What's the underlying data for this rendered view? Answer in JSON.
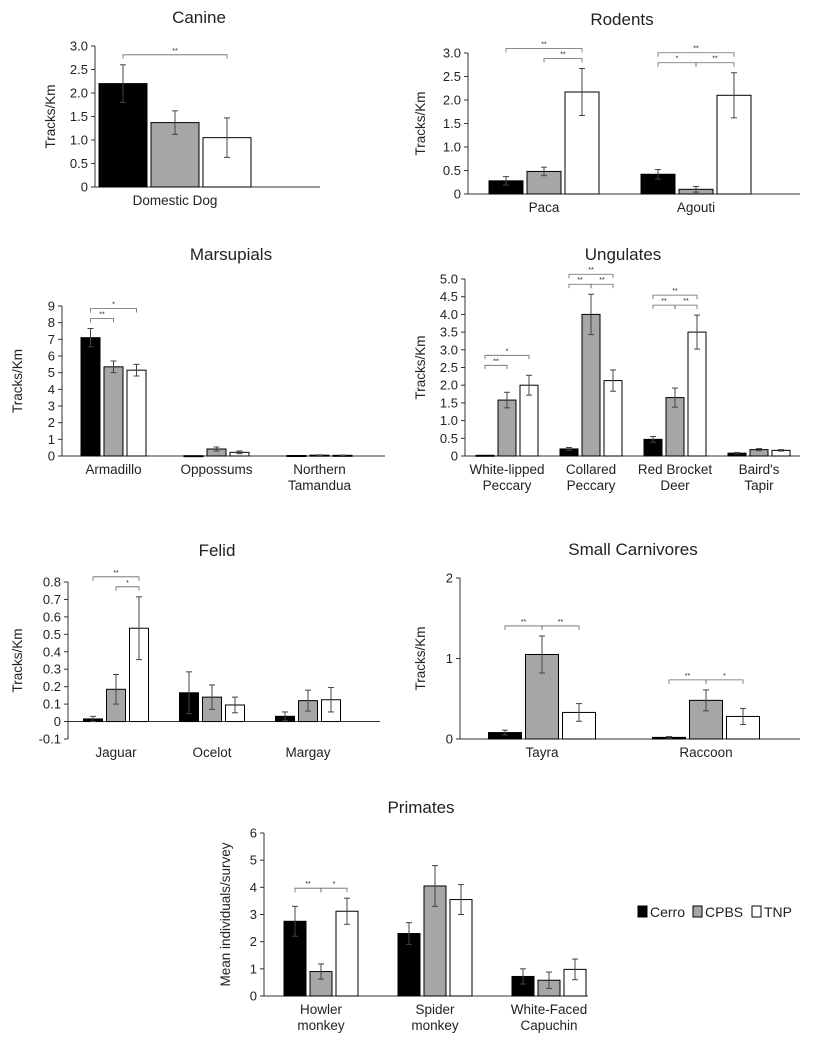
{
  "colors": {
    "Cerro": "#000000",
    "CPBS": "#a6a6a6",
    "TNP": "#ffffff"
  },
  "legend": {
    "items": [
      "Cerro",
      "CPBS",
      "TNP"
    ]
  },
  "chart_data": [
    {
      "id": "canine",
      "type": "bar",
      "title": "Canine",
      "ylabel": "Tracks/Km",
      "categories": [
        "Domestic Dog"
      ],
      "ylim": [
        0,
        3.0
      ],
      "yticks": [
        "0",
        "0.5",
        "1.0",
        "1.5",
        "2.0",
        "2.5",
        "3.0"
      ],
      "series": [
        {
          "name": "Cerro",
          "values": [
            2.2
          ],
          "errors": [
            0.4
          ]
        },
        {
          "name": "CPBS",
          "values": [
            1.37
          ],
          "errors": [
            0.25
          ]
        },
        {
          "name": "TNP",
          "values": [
            1.05
          ],
          "errors": [
            0.42
          ]
        }
      ],
      "significance": [
        {
          "category": 0,
          "from": 0,
          "to": 2,
          "label": "**"
        }
      ]
    },
    {
      "id": "rodents",
      "type": "bar",
      "title": "Rodents",
      "ylabel": "Tracks/Km",
      "categories": [
        "Paca",
        "Agouti"
      ],
      "ylim": [
        0,
        3.0
      ],
      "yticks": [
        "0",
        "0.5",
        "1.0",
        "1.5",
        "2.0",
        "2.5",
        "3.0"
      ],
      "series": [
        {
          "name": "Cerro",
          "values": [
            0.28,
            0.42
          ],
          "errors": [
            0.09,
            0.1
          ]
        },
        {
          "name": "CPBS",
          "values": [
            0.48,
            0.1
          ],
          "errors": [
            0.09,
            0.06
          ]
        },
        {
          "name": "TNP",
          "values": [
            2.17,
            2.1
          ],
          "errors": [
            0.5,
            0.48
          ]
        }
      ],
      "significance": [
        {
          "category": 0,
          "from": 0,
          "to": 2,
          "label": "**"
        },
        {
          "category": 0,
          "from": 1,
          "to": 2,
          "label": "**"
        },
        {
          "category": 1,
          "from": 0,
          "to": 2,
          "label": "**"
        },
        {
          "category": 1,
          "from": 0,
          "to": 1,
          "label": "*"
        },
        {
          "category": 1,
          "from": 1,
          "to": 2,
          "label": "**"
        }
      ]
    },
    {
      "id": "marsupials",
      "type": "bar",
      "title": "Marsupials",
      "ylabel": "Tracks/Km",
      "categories": [
        "Armadillo",
        "Oppossums",
        "Northern\nTamandua"
      ],
      "ylim": [
        0,
        9
      ],
      "yticks": [
        "0",
        "1",
        "2",
        "3",
        "4",
        "5",
        "6",
        "7",
        "8",
        "9"
      ],
      "series": [
        {
          "name": "Cerro",
          "values": [
            7.1,
            0.02,
            0.03
          ],
          "errors": [
            0.55,
            0,
            0
          ]
        },
        {
          "name": "CPBS",
          "values": [
            5.35,
            0.42,
            0.05
          ],
          "errors": [
            0.35,
            0.12,
            0.02
          ]
        },
        {
          "name": "TNP",
          "values": [
            5.15,
            0.22,
            0.04
          ],
          "errors": [
            0.35,
            0.08,
            0.02
          ]
        }
      ],
      "significance": [
        {
          "category": 0,
          "from": 0,
          "to": 2,
          "label": "*"
        },
        {
          "category": 0,
          "from": 0,
          "to": 1,
          "label": "**"
        }
      ]
    },
    {
      "id": "ungulates",
      "type": "bar",
      "title": "Ungulates",
      "ylabel": "Tracks/Km",
      "categories": [
        "White-lipped\nPeccary",
        "Collared\nPeccary",
        "Red Brocket\nDeer",
        "Baird's\nTapir"
      ],
      "ylim": [
        0,
        5.0
      ],
      "yticks": [
        "0",
        "0.5",
        "1.0",
        "1.5",
        "2.0",
        "2.5",
        "3.0",
        "3.5",
        "4.0",
        "4.5",
        "5.0"
      ],
      "series": [
        {
          "name": "Cerro",
          "values": [
            0.02,
            0.2,
            0.47,
            0.08
          ],
          "errors": [
            0,
            0.04,
            0.08,
            0.02
          ]
        },
        {
          "name": "CPBS",
          "values": [
            1.58,
            4.0,
            1.65,
            0.18
          ],
          "errors": [
            0.22,
            0.57,
            0.27,
            0.03
          ]
        },
        {
          "name": "TNP",
          "values": [
            2.0,
            2.13,
            3.5,
            0.16
          ],
          "errors": [
            0.28,
            0.3,
            0.48,
            0.02
          ]
        }
      ],
      "significance": [
        {
          "category": 0,
          "from": 0,
          "to": 2,
          "label": "*"
        },
        {
          "category": 0,
          "from": 0,
          "to": 1,
          "label": "**"
        },
        {
          "category": 1,
          "from": 0,
          "to": 2,
          "label": "**"
        },
        {
          "category": 1,
          "from": 0,
          "to": 1,
          "label": "**"
        },
        {
          "category": 1,
          "from": 1,
          "to": 2,
          "label": "**"
        },
        {
          "category": 2,
          "from": 0,
          "to": 2,
          "label": "**"
        },
        {
          "category": 2,
          "from": 0,
          "to": 1,
          "label": "**"
        },
        {
          "category": 2,
          "from": 1,
          "to": 2,
          "label": "**"
        }
      ]
    },
    {
      "id": "felid",
      "type": "bar",
      "title": "Felid",
      "ylabel": "Tracks/Km",
      "categories": [
        "Jaguar",
        "Ocelot",
        "Margay"
      ],
      "ylim": [
        -0.1,
        0.8
      ],
      "yticks": [
        "-0.1",
        "0",
        "0.1",
        "0.2",
        "0.3",
        "0.4",
        "0.5",
        "0.6",
        "0.7",
        "0.8"
      ],
      "series": [
        {
          "name": "Cerro",
          "values": [
            0.015,
            0.165,
            0.03
          ],
          "errors": [
            0.015,
            0.12,
            0.025
          ]
        },
        {
          "name": "CPBS",
          "values": [
            0.185,
            0.14,
            0.12
          ],
          "errors": [
            0.085,
            0.07,
            0.06
          ]
        },
        {
          "name": "TNP",
          "values": [
            0.535,
            0.095,
            0.125
          ],
          "errors": [
            0.18,
            0.045,
            0.07
          ]
        }
      ],
      "significance": [
        {
          "category": 0,
          "from": 0,
          "to": 2,
          "label": "**"
        },
        {
          "category": 0,
          "from": 1,
          "to": 2,
          "label": "*"
        }
      ]
    },
    {
      "id": "small_carnivores",
      "type": "bar",
      "title": "Small Carnivores",
      "ylabel": "Tracks/Km",
      "categories": [
        "Tayra",
        "Raccoon"
      ],
      "ylim": [
        0,
        2
      ],
      "yticks": [
        "0",
        "1",
        "2"
      ],
      "series": [
        {
          "name": "Cerro",
          "values": [
            0.08,
            0.02
          ],
          "errors": [
            0.03,
            0.01
          ]
        },
        {
          "name": "CPBS",
          "values": [
            1.05,
            0.48
          ],
          "errors": [
            0.23,
            0.13
          ]
        },
        {
          "name": "TNP",
          "values": [
            0.33,
            0.28
          ],
          "errors": [
            0.11,
            0.1
          ]
        }
      ],
      "significance": [
        {
          "category": 0,
          "from": 0,
          "to": 1,
          "label": "**"
        },
        {
          "category": 0,
          "from": 1,
          "to": 2,
          "label": "**"
        },
        {
          "category": 1,
          "from": 0,
          "to": 1,
          "label": "**"
        },
        {
          "category": 1,
          "from": 1,
          "to": 2,
          "label": "*"
        }
      ]
    },
    {
      "id": "primates",
      "type": "bar",
      "title": "Primates",
      "ylabel": "Mean individuals/survey",
      "categories": [
        "Howler\nmonkey",
        "Spider\nmonkey",
        "White-Faced\nCapuchin"
      ],
      "ylim": [
        0,
        6
      ],
      "yticks": [
        "0",
        "1",
        "2",
        "3",
        "4",
        "5",
        "6"
      ],
      "series": [
        {
          "name": "Cerro",
          "values": [
            2.75,
            2.3,
            0.72
          ],
          "errors": [
            0.55,
            0.4,
            0.28
          ]
        },
        {
          "name": "CPBS",
          "values": [
            0.9,
            4.05,
            0.58
          ],
          "errors": [
            0.28,
            0.75,
            0.3
          ]
        },
        {
          "name": "TNP",
          "values": [
            3.12,
            3.55,
            0.98
          ],
          "errors": [
            0.48,
            0.55,
            0.38
          ]
        }
      ],
      "significance": [
        {
          "category": 0,
          "from": 0,
          "to": 1,
          "label": "**"
        },
        {
          "category": 0,
          "from": 1,
          "to": 2,
          "label": "*"
        }
      ]
    }
  ]
}
